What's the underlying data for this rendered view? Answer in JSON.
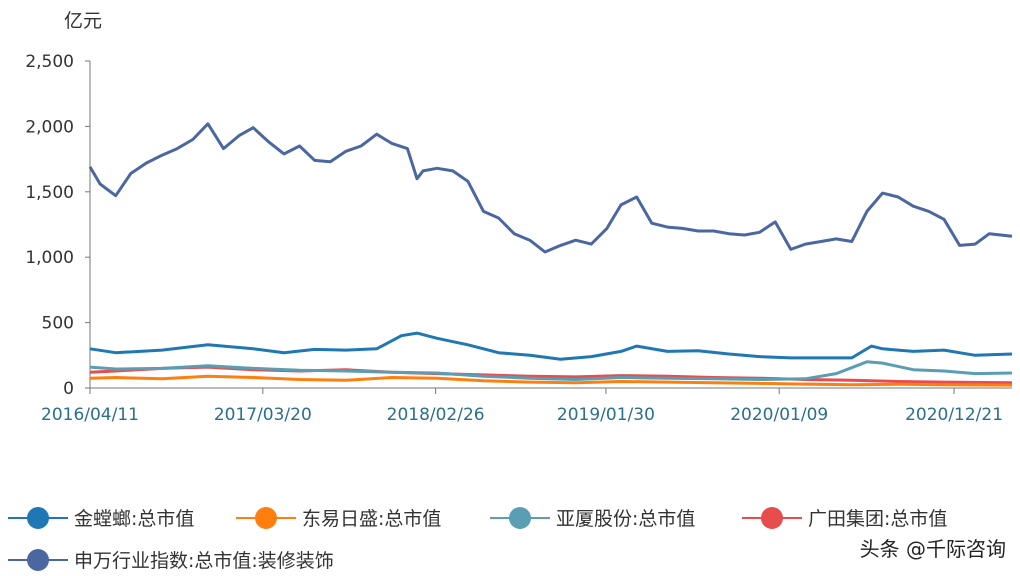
{
  "unit_label": "亿元",
  "watermark": "头条 @千际咨询",
  "chart_data": {
    "type": "line",
    "ylabel": "亿元",
    "ylim": [
      0,
      2500
    ],
    "yticks": [
      0,
      500,
      1000,
      1500,
      2000,
      2500
    ],
    "ytick_labels": [
      "0",
      "500",
      "1,000",
      "1,500",
      "2,000",
      "2,500"
    ],
    "x_range": [
      "2016/04/11",
      "2021/04/15"
    ],
    "xtick_labels": [
      "2016/04/11",
      "2017/03/20",
      "2018/02/26",
      "2019/01/30",
      "2020/01/09",
      "2020/12/21"
    ],
    "grid": false,
    "legend_position": "bottom",
    "series": [
      {
        "name": "申万行业指数:总市值:装修装饰",
        "color": "#4a67a1",
        "points": [
          [
            "2016/04/11",
            1690
          ],
          [
            "2016/05/01",
            1560
          ],
          [
            "2016/06/01",
            1470
          ],
          [
            "2016/07/01",
            1640
          ],
          [
            "2016/08/01",
            1720
          ],
          [
            "2016/09/01",
            1780
          ],
          [
            "2016/10/01",
            1830
          ],
          [
            "2016/11/01",
            1900
          ],
          [
            "2016/12/01",
            2020
          ],
          [
            "2017/01/01",
            1830
          ],
          [
            "2017/02/01",
            1930
          ],
          [
            "2017/03/01",
            1990
          ],
          [
            "2017/04/01",
            1880
          ],
          [
            "2017/05/01",
            1790
          ],
          [
            "2017/06/01",
            1850
          ],
          [
            "2017/07/01",
            1740
          ],
          [
            "2017/08/01",
            1730
          ],
          [
            "2017/09/01",
            1810
          ],
          [
            "2017/10/01",
            1850
          ],
          [
            "2017/11/01",
            1940
          ],
          [
            "2017/12/01",
            1870
          ],
          [
            "2018/01/01",
            1830
          ],
          [
            "2018/01/20",
            1600
          ],
          [
            "2018/02/01",
            1660
          ],
          [
            "2018/03/01",
            1680
          ],
          [
            "2018/04/01",
            1660
          ],
          [
            "2018/05/01",
            1580
          ],
          [
            "2018/06/01",
            1350
          ],
          [
            "2018/07/01",
            1300
          ],
          [
            "2018/08/01",
            1180
          ],
          [
            "2018/09/01",
            1130
          ],
          [
            "2018/10/01",
            1040
          ],
          [
            "2018/11/01",
            1090
          ],
          [
            "2018/12/01",
            1130
          ],
          [
            "2019/01/01",
            1100
          ],
          [
            "2019/02/01",
            1220
          ],
          [
            "2019/03/01",
            1400
          ],
          [
            "2019/04/01",
            1460
          ],
          [
            "2019/05/01",
            1260
          ],
          [
            "2019/06/01",
            1230
          ],
          [
            "2019/07/01",
            1220
          ],
          [
            "2019/08/01",
            1200
          ],
          [
            "2019/09/01",
            1200
          ],
          [
            "2019/10/01",
            1180
          ],
          [
            "2019/11/01",
            1170
          ],
          [
            "2019/12/01",
            1190
          ],
          [
            "2020/01/01",
            1270
          ],
          [
            "2020/02/01",
            1060
          ],
          [
            "2020/03/01",
            1100
          ],
          [
            "2020/04/01",
            1120
          ],
          [
            "2020/05/01",
            1140
          ],
          [
            "2020/06/01",
            1120
          ],
          [
            "2020/07/01",
            1350
          ],
          [
            "2020/08/01",
            1490
          ],
          [
            "2020/09/01",
            1460
          ],
          [
            "2020/10/01",
            1390
          ],
          [
            "2020/11/01",
            1350
          ],
          [
            "2020/12/01",
            1290
          ],
          [
            "2021/01/01",
            1090
          ],
          [
            "2021/02/01",
            1100
          ],
          [
            "2021/03/01",
            1180
          ],
          [
            "2021/04/15",
            1160
          ]
        ]
      },
      {
        "name": "金螳螂:总市值",
        "color": "#1f77b4",
        "points": [
          [
            "2016/04/11",
            300
          ],
          [
            "2016/06/01",
            270
          ],
          [
            "2016/09/01",
            290
          ],
          [
            "2016/12/01",
            330
          ],
          [
            "2017/03/01",
            300
          ],
          [
            "2017/05/01",
            270
          ],
          [
            "2017/07/01",
            295
          ],
          [
            "2017/09/01",
            290
          ],
          [
            "2017/11/01",
            300
          ],
          [
            "2017/12/20",
            400
          ],
          [
            "2018/01/20",
            420
          ],
          [
            "2018/03/01",
            380
          ],
          [
            "2018/05/01",
            330
          ],
          [
            "2018/07/01",
            270
          ],
          [
            "2018/09/01",
            250
          ],
          [
            "2018/11/01",
            220
          ],
          [
            "2019/01/01",
            240
          ],
          [
            "2019/03/01",
            280
          ],
          [
            "2019/04/01",
            320
          ],
          [
            "2019/06/01",
            280
          ],
          [
            "2019/08/01",
            285
          ],
          [
            "2019/10/01",
            260
          ],
          [
            "2019/12/01",
            240
          ],
          [
            "2020/02/01",
            230
          ],
          [
            "2020/04/01",
            230
          ],
          [
            "2020/06/01",
            230
          ],
          [
            "2020/07/10",
            320
          ],
          [
            "2020/08/01",
            300
          ],
          [
            "2020/10/01",
            280
          ],
          [
            "2020/12/01",
            290
          ],
          [
            "2021/02/01",
            250
          ],
          [
            "2021/04/15",
            260
          ]
        ]
      },
      {
        "name": "东易日盛:总市值",
        "color": "#ff7f0e",
        "points": [
          [
            "2016/04/11",
            75
          ],
          [
            "2016/06/01",
            80
          ],
          [
            "2016/09/01",
            70
          ],
          [
            "2016/12/01",
            90
          ],
          [
            "2017/03/01",
            80
          ],
          [
            "2017/06/01",
            65
          ],
          [
            "2017/09/01",
            60
          ],
          [
            "2017/12/01",
            80
          ],
          [
            "2018/03/01",
            75
          ],
          [
            "2018/06/01",
            55
          ],
          [
            "2018/09/01",
            45
          ],
          [
            "2018/12/01",
            40
          ],
          [
            "2019/03/01",
            50
          ],
          [
            "2019/06/01",
            45
          ],
          [
            "2019/09/01",
            40
          ],
          [
            "2019/12/01",
            35
          ],
          [
            "2020/03/01",
            30
          ],
          [
            "2020/06/01",
            25
          ],
          [
            "2020/09/01",
            28
          ],
          [
            "2020/12/01",
            25
          ],
          [
            "2021/04/15",
            22
          ]
        ]
      },
      {
        "name": "亚厦股份:总市值",
        "color": "#5a9eb3",
        "points": [
          [
            "2016/04/11",
            160
          ],
          [
            "2016/06/01",
            145
          ],
          [
            "2016/09/01",
            150
          ],
          [
            "2016/12/01",
            170
          ],
          [
            "2017/03/01",
            150
          ],
          [
            "2017/06/01",
            135
          ],
          [
            "2017/09/01",
            130
          ],
          [
            "2017/12/01",
            120
          ],
          [
            "2018/03/01",
            115
          ],
          [
            "2018/06/01",
            90
          ],
          [
            "2018/09/01",
            75
          ],
          [
            "2018/12/01",
            65
          ],
          [
            "2019/03/01",
            80
          ],
          [
            "2019/06/01",
            75
          ],
          [
            "2019/09/01",
            70
          ],
          [
            "2019/12/01",
            65
          ],
          [
            "2020/03/01",
            70
          ],
          [
            "2020/05/01",
            110
          ],
          [
            "2020/07/01",
            200
          ],
          [
            "2020/08/01",
            190
          ],
          [
            "2020/10/01",
            140
          ],
          [
            "2020/12/01",
            130
          ],
          [
            "2021/02/01",
            110
          ],
          [
            "2021/04/15",
            115
          ]
        ]
      },
      {
        "name": "广田集团:总市值",
        "color": "#e84d4d",
        "points": [
          [
            "2016/04/11",
            120
          ],
          [
            "2016/06/01",
            130
          ],
          [
            "2016/09/01",
            150
          ],
          [
            "2016/12/01",
            160
          ],
          [
            "2017/03/01",
            140
          ],
          [
            "2017/06/01",
            130
          ],
          [
            "2017/09/01",
            140
          ],
          [
            "2017/12/01",
            120
          ],
          [
            "2018/03/01",
            110
          ],
          [
            "2018/06/01",
            100
          ],
          [
            "2018/09/01",
            90
          ],
          [
            "2018/12/01",
            85
          ],
          [
            "2019/03/01",
            95
          ],
          [
            "2019/06/01",
            90
          ],
          [
            "2019/09/01",
            80
          ],
          [
            "2019/12/01",
            75
          ],
          [
            "2020/03/01",
            65
          ],
          [
            "2020/06/01",
            60
          ],
          [
            "2020/09/01",
            50
          ],
          [
            "2020/12/01",
            45
          ],
          [
            "2021/04/15",
            40
          ]
        ]
      }
    ]
  },
  "legend": [
    {
      "label": "金螳螂:总市值",
      "color": "#1f77b4"
    },
    {
      "label": "东易日盛:总市值",
      "color": "#ff7f0e"
    },
    {
      "label": "亚厦股份:总市值",
      "color": "#5a9eb3"
    },
    {
      "label": "广田集团:总市值",
      "color": "#e84d4d"
    },
    {
      "label": "申万行业指数:总市值:装修装饰",
      "color": "#4a67a1"
    }
  ]
}
